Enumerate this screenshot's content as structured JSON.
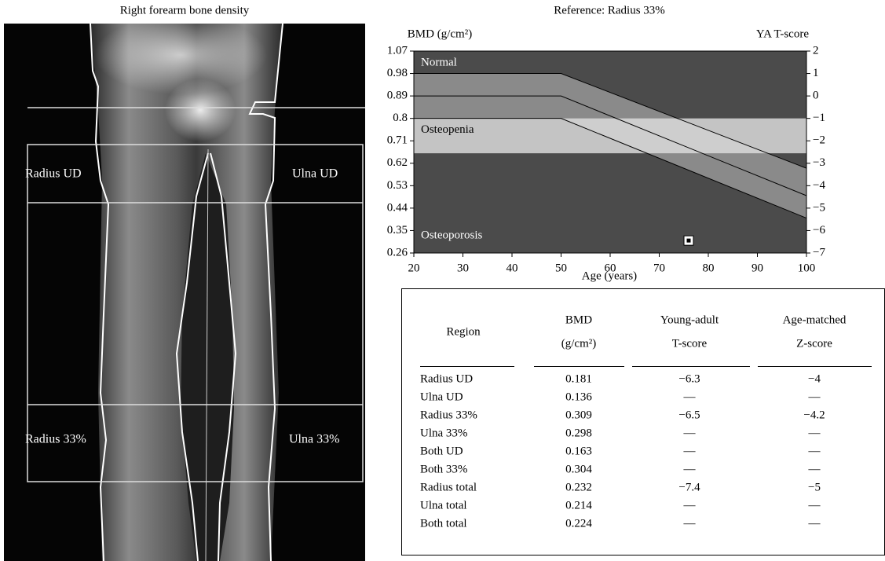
{
  "image": {
    "title": "Right forearm bone density",
    "labels": [
      "Radius UD",
      "Ulna UD",
      "Radius 33%",
      "Ulna 33%"
    ]
  },
  "chart_data": {
    "type": "line",
    "title": "Reference: Radius 33%",
    "y_label": "BMD (g/cm²)",
    "y2_label": "YA T-score",
    "x_label": "Age (years)",
    "xlim": [
      20,
      100
    ],
    "xticks": [
      20,
      30,
      40,
      50,
      60,
      70,
      80,
      90,
      100
    ],
    "ylim": [
      0.26,
      1.07
    ],
    "yticks": [
      0.26,
      0.35,
      0.44,
      0.53,
      0.62,
      0.71,
      0.8,
      0.89,
      0.98,
      1.07
    ],
    "y2lim": [
      -7,
      2
    ],
    "y2ticks": [
      {
        "value": -7,
        "label": "−7"
      },
      {
        "value": -6,
        "label": "−6"
      },
      {
        "value": -5,
        "label": "−5"
      },
      {
        "value": -4,
        "label": "−4"
      },
      {
        "value": -3,
        "label": "−3"
      },
      {
        "value": -2,
        "label": "−2"
      },
      {
        "value": -1,
        "label": "−1"
      },
      0,
      1,
      2
    ],
    "background": "#4b4b4b",
    "reference_fill": "#8a8a8a",
    "regions": [
      {
        "label": "Normal",
        "ylim": [
          0.8,
          1.07
        ]
      },
      {
        "label": "Osteopenia",
        "ylim": [
          0.66,
          0.8
        ],
        "color": "#d9d9d9"
      },
      {
        "label": "Osteoporosis",
        "ylim": [
          0.26,
          0.66
        ]
      }
    ],
    "x": [
      20,
      50,
      100
    ],
    "series": [
      {
        "color": "#000000",
        "values": [
          0.98,
          0.98,
          0.6
        ]
      },
      {
        "color": "#000000",
        "values": [
          0.89,
          0.89,
          0.49
        ]
      },
      {
        "color": "#000000",
        "values": [
          0.8,
          0.8,
          0.4
        ]
      }
    ],
    "point": {
      "x": 76,
      "y": 0.31
    }
  },
  "table": {
    "header": [
      [
        "Region"
      ],
      [
        "BMD",
        "(g/cm²)"
      ],
      [
        "Young-adult",
        "T-score"
      ],
      [
        "Age-matched",
        "Z-score"
      ]
    ],
    "rows": [
      [
        "Radius UD",
        "0.181",
        "−6.3",
        "−4"
      ],
      [
        "Ulna UD",
        "0.136",
        "—",
        "—"
      ],
      [
        "Radius 33%",
        "0.309",
        "−6.5",
        "−4.2"
      ],
      [
        "Ulna 33%",
        "0.298",
        "—",
        "—"
      ],
      [
        "Both UD",
        "0.163",
        "—",
        "—"
      ],
      [
        "Both 33%",
        "0.304",
        "—",
        "—"
      ],
      [
        "Radius total",
        "0.232",
        "−7.4",
        "−5"
      ],
      [
        "Ulna total",
        "0.214",
        "—",
        "—"
      ],
      [
        "Both total",
        "0.224",
        "—",
        "—"
      ]
    ]
  }
}
